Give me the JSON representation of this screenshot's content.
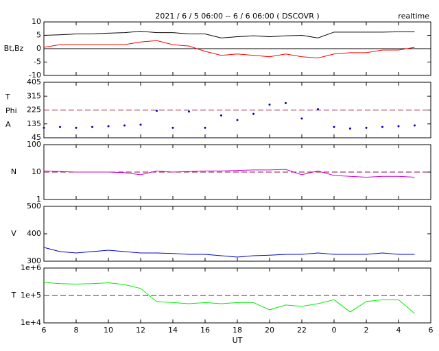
{
  "chart_data": [
    {
      "type": "line",
      "title": "2021 / 6 / 5  06:00 -- 6 / 6  06:00 ( DSCOVR )",
      "annotation": "realtime",
      "ylabel": "Bt,Bz",
      "x": [
        6,
        7,
        8,
        9,
        10,
        11,
        12,
        13,
        14,
        15,
        16,
        17,
        18,
        19,
        20,
        21,
        22,
        23,
        24,
        25,
        26,
        27,
        28,
        29
      ],
      "xlim": [
        6,
        30
      ],
      "ylim": [
        -10,
        10
      ],
      "yticks": [
        10,
        5,
        0,
        -5,
        -10
      ],
      "hline": 0,
      "hline_style": "solid",
      "series": [
        {
          "name": "Bt",
          "color": "#000000",
          "values": [
            5,
            5.2,
            5.5,
            5.5,
            5.8,
            6,
            6.5,
            6,
            6,
            5.5,
            5.5,
            4,
            4.5,
            4.8,
            4.5,
            4.8,
            5,
            4,
            6.2,
            6.2,
            6.2,
            6.2,
            6.3,
            6.3
          ]
        },
        {
          "name": "Bz",
          "color": "#ff0000",
          "values": [
            0.5,
            1.5,
            1.5,
            1.5,
            1.5,
            1.5,
            2.5,
            3,
            1.5,
            1,
            -1,
            -2.5,
            -2,
            -2.5,
            -3,
            -2,
            -3,
            -3.5,
            -2,
            -1.5,
            -1.5,
            -0.5,
            -0.5,
            0.5
          ]
        }
      ]
    },
    {
      "type": "scatter",
      "ylabels": [
        "T",
        "Phi",
        "A"
      ],
      "x": [
        6,
        7,
        8,
        9,
        10,
        11,
        12,
        13,
        14,
        15,
        16,
        17,
        18,
        19,
        20,
        21,
        22,
        23,
        24,
        25,
        26,
        27,
        28,
        29
      ],
      "xlim": [
        6,
        30
      ],
      "ylim": [
        45,
        405
      ],
      "yticks": [
        405,
        315,
        225,
        135,
        45
      ],
      "hline": 225,
      "hline_style": "dashed",
      "series": [
        {
          "name": "Phi",
          "color": "#0000cc",
          "values": [
            110,
            115,
            110,
            115,
            120,
            125,
            130,
            220,
            110,
            215,
            110,
            190,
            160,
            200,
            260,
            270,
            170,
            230,
            115,
            105,
            110,
            115,
            120,
            125
          ]
        }
      ]
    },
    {
      "type": "line",
      "ylabel": "N",
      "log": true,
      "x": [
        6,
        7,
        8,
        9,
        10,
        11,
        12,
        13,
        14,
        15,
        16,
        17,
        18,
        19,
        20,
        21,
        22,
        23,
        24,
        25,
        26,
        27,
        28,
        29
      ],
      "xlim": [
        6,
        30
      ],
      "ylim": [
        1,
        100
      ],
      "yticks": [
        100,
        10,
        1
      ],
      "hline": 10,
      "hline_style": "dashed",
      "series": [
        {
          "name": "N",
          "color": "#cc00cc",
          "values": [
            11,
            10.5,
            10,
            10,
            10,
            9.5,
            8,
            11,
            10,
            10.5,
            11,
            11,
            11.5,
            12,
            12,
            12.5,
            8,
            11,
            7.5,
            7,
            6.5,
            7,
            7,
            6.5
          ]
        }
      ]
    },
    {
      "type": "line",
      "ylabel": "V",
      "x": [
        6,
        7,
        8,
        9,
        10,
        11,
        12,
        13,
        14,
        15,
        16,
        17,
        18,
        19,
        20,
        21,
        22,
        23,
        24,
        25,
        26,
        27,
        28,
        29
      ],
      "xlim": [
        6,
        30
      ],
      "ylim": [
        300,
        500
      ],
      "yticks": [
        500,
        400,
        300
      ],
      "series": [
        {
          "name": "V",
          "color": "#0000cc",
          "values": [
            350,
            335,
            330,
            335,
            340,
            335,
            330,
            330,
            328,
            325,
            325,
            320,
            315,
            320,
            322,
            325,
            325,
            330,
            325,
            325,
            325,
            330,
            325,
            325
          ]
        }
      ]
    },
    {
      "type": "line",
      "ylabel": "T",
      "log": true,
      "xlabel": "UT",
      "x": [
        6,
        7,
        8,
        9,
        10,
        11,
        12,
        13,
        14,
        15,
        16,
        17,
        18,
        19,
        20,
        21,
        22,
        23,
        24,
        25,
        26,
        27,
        28,
        29
      ],
      "xlim": [
        6,
        30
      ],
      "xticks": [
        6,
        8,
        10,
        12,
        14,
        16,
        18,
        20,
        22,
        {
          "value": 24,
          "label": "0"
        },
        {
          "value": 26,
          "label": "2"
        },
        {
          "value": 28,
          "label": "4"
        },
        {
          "value": 30,
          "label": "6"
        }
      ],
      "ylim": [
        10000,
        1000000
      ],
      "yticks": [
        {
          "value": 1000000,
          "label": "1e+6"
        },
        {
          "value": 100000,
          "label": "1e+5"
        },
        {
          "value": 10000,
          "label": "1e+4"
        }
      ],
      "hline": 100000,
      "hline_style": "dashed",
      "series": [
        {
          "name": "T",
          "color": "#00ee00",
          "values": [
            300000,
            270000,
            260000,
            270000,
            290000,
            250000,
            180000,
            60000,
            55000,
            50000,
            55000,
            50000,
            55000,
            55000,
            30000,
            45000,
            40000,
            50000,
            70000,
            25000,
            60000,
            70000,
            70000,
            22000
          ]
        }
      ]
    }
  ]
}
